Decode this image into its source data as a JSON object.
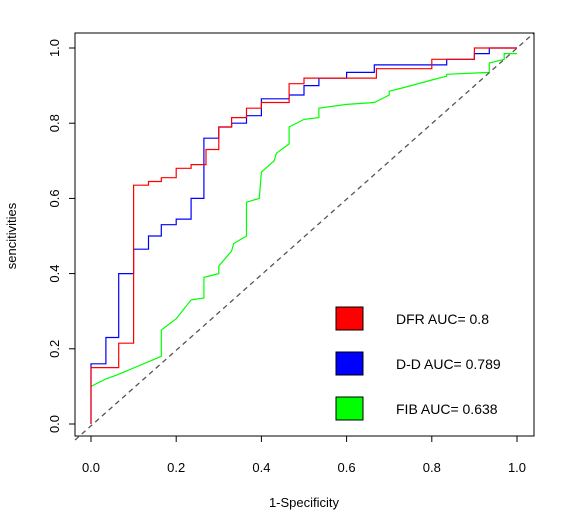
{
  "chart_data": {
    "type": "line",
    "title": "",
    "xlabel": "1-Specificity",
    "ylabel": "sencitivities",
    "xlim": [
      0.0,
      1.0
    ],
    "ylim": [
      0.0,
      1.0
    ],
    "x_ticks": [
      "0.0",
      "0.2",
      "0.4",
      "0.6",
      "0.8",
      "1.0"
    ],
    "y_ticks": [
      "0.0",
      "0.2",
      "0.4",
      "0.6",
      "0.8",
      "1.0"
    ],
    "grid": false,
    "legend_position": "bottom-right",
    "reference_line": {
      "style": "dashed",
      "color": "#555555",
      "from": [
        0,
        0
      ],
      "to": [
        1,
        1
      ]
    },
    "series": [
      {
        "name": "DFR AUC= 0.8",
        "color": "#ff0000",
        "points": [
          [
            0.0,
            0.0
          ],
          [
            0.0,
            0.15
          ],
          [
            0.065,
            0.15
          ],
          [
            0.065,
            0.215
          ],
          [
            0.1,
            0.215
          ],
          [
            0.1,
            0.635
          ],
          [
            0.135,
            0.635
          ],
          [
            0.135,
            0.645
          ],
          [
            0.165,
            0.645
          ],
          [
            0.165,
            0.655
          ],
          [
            0.2,
            0.655
          ],
          [
            0.2,
            0.68
          ],
          [
            0.235,
            0.68
          ],
          [
            0.235,
            0.69
          ],
          [
            0.27,
            0.69
          ],
          [
            0.27,
            0.73
          ],
          [
            0.3,
            0.73
          ],
          [
            0.3,
            0.79
          ],
          [
            0.33,
            0.79
          ],
          [
            0.33,
            0.815
          ],
          [
            0.365,
            0.815
          ],
          [
            0.365,
            0.84
          ],
          [
            0.4,
            0.84
          ],
          [
            0.4,
            0.855
          ],
          [
            0.465,
            0.855
          ],
          [
            0.465,
            0.905
          ],
          [
            0.5,
            0.905
          ],
          [
            0.5,
            0.92
          ],
          [
            0.67,
            0.92
          ],
          [
            0.67,
            0.945
          ],
          [
            0.8,
            0.945
          ],
          [
            0.8,
            0.97
          ],
          [
            0.9,
            0.97
          ],
          [
            0.9,
            1.0
          ],
          [
            1.0,
            1.0
          ]
        ]
      },
      {
        "name": "D-D AUC= 0.789",
        "color": "#0000ff",
        "points": [
          [
            0.0,
            0.0
          ],
          [
            0.0,
            0.16
          ],
          [
            0.035,
            0.16
          ],
          [
            0.035,
            0.23
          ],
          [
            0.065,
            0.23
          ],
          [
            0.065,
            0.4
          ],
          [
            0.1,
            0.4
          ],
          [
            0.1,
            0.465
          ],
          [
            0.135,
            0.465
          ],
          [
            0.135,
            0.5
          ],
          [
            0.165,
            0.5
          ],
          [
            0.165,
            0.53
          ],
          [
            0.2,
            0.53
          ],
          [
            0.2,
            0.545
          ],
          [
            0.235,
            0.545
          ],
          [
            0.235,
            0.6
          ],
          [
            0.265,
            0.6
          ],
          [
            0.265,
            0.76
          ],
          [
            0.3,
            0.76
          ],
          [
            0.3,
            0.79
          ],
          [
            0.33,
            0.79
          ],
          [
            0.33,
            0.8
          ],
          [
            0.365,
            0.8
          ],
          [
            0.365,
            0.82
          ],
          [
            0.4,
            0.82
          ],
          [
            0.4,
            0.865
          ],
          [
            0.465,
            0.865
          ],
          [
            0.465,
            0.875
          ],
          [
            0.5,
            0.875
          ],
          [
            0.5,
            0.9
          ],
          [
            0.535,
            0.9
          ],
          [
            0.535,
            0.92
          ],
          [
            0.6,
            0.92
          ],
          [
            0.6,
            0.935
          ],
          [
            0.665,
            0.935
          ],
          [
            0.665,
            0.955
          ],
          [
            0.835,
            0.955
          ],
          [
            0.835,
            0.97
          ],
          [
            0.9,
            0.97
          ],
          [
            0.9,
            0.985
          ],
          [
            0.935,
            0.985
          ],
          [
            0.935,
            1.0
          ],
          [
            1.0,
            1.0
          ]
        ]
      },
      {
        "name": "FIB AUC= 0.638",
        "color": "#00ff00",
        "points": [
          [
            0.0,
            0.1
          ],
          [
            0.035,
            0.12
          ],
          [
            0.06,
            0.13
          ],
          [
            0.165,
            0.18
          ],
          [
            0.165,
            0.25
          ],
          [
            0.2,
            0.28
          ],
          [
            0.235,
            0.33
          ],
          [
            0.265,
            0.335
          ],
          [
            0.265,
            0.39
          ],
          [
            0.3,
            0.4
          ],
          [
            0.3,
            0.42
          ],
          [
            0.33,
            0.46
          ],
          [
            0.335,
            0.48
          ],
          [
            0.365,
            0.5
          ],
          [
            0.365,
            0.59
          ],
          [
            0.395,
            0.6
          ],
          [
            0.4,
            0.67
          ],
          [
            0.43,
            0.7
          ],
          [
            0.435,
            0.72
          ],
          [
            0.465,
            0.745
          ],
          [
            0.465,
            0.79
          ],
          [
            0.5,
            0.81
          ],
          [
            0.535,
            0.815
          ],
          [
            0.535,
            0.84
          ],
          [
            0.6,
            0.85
          ],
          [
            0.665,
            0.855
          ],
          [
            0.7,
            0.875
          ],
          [
            0.7,
            0.885
          ],
          [
            0.735,
            0.895
          ],
          [
            0.8,
            0.915
          ],
          [
            0.835,
            0.925
          ],
          [
            0.835,
            0.93
          ],
          [
            0.935,
            0.935
          ],
          [
            0.935,
            0.96
          ],
          [
            0.97,
            0.97
          ],
          [
            0.97,
            0.985
          ],
          [
            1.0,
            0.985
          ]
        ]
      }
    ]
  }
}
